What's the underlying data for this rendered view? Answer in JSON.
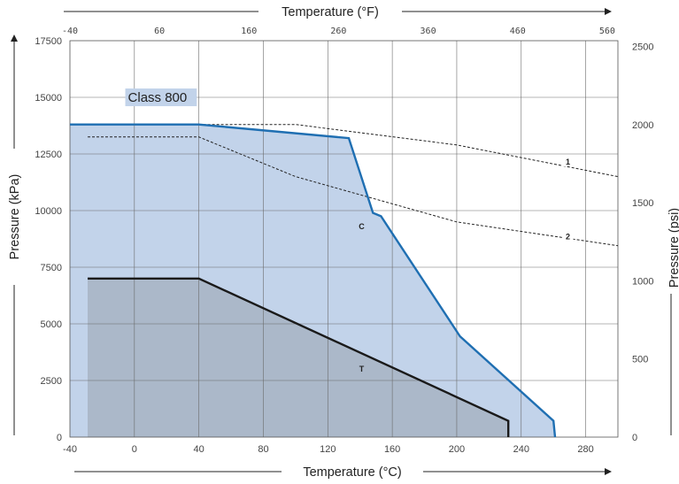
{
  "chart_data": {
    "type": "area",
    "title": "",
    "annotation": "Class 800",
    "x_bottom": {
      "label": "Temperature (°C)",
      "range": [
        -40,
        300
      ],
      "ticks": [
        -40,
        0,
        40,
        80,
        120,
        160,
        200,
        240,
        280
      ]
    },
    "x_top": {
      "label": "Temperature (°F)",
      "range": [
        -40,
        572
      ],
      "ticks": [
        -40,
        60,
        160,
        260,
        360,
        460,
        560
      ]
    },
    "y_left": {
      "label": "Pressure (kPa)",
      "range": [
        0,
        17500
      ],
      "ticks": [
        0,
        2500,
        5000,
        7500,
        10000,
        12500,
        15000,
        17500
      ]
    },
    "y_right": {
      "label": "Pressure (psi)",
      "range": [
        0,
        2538
      ],
      "ticks": [
        0,
        500,
        1000,
        1500,
        2000,
        2500
      ]
    },
    "grid": true,
    "series": [
      {
        "name": "C",
        "style": "filled-solid",
        "color": "#1f6fb2",
        "x": [
          -40,
          40,
          133,
          148,
          153,
          202,
          260,
          261
        ],
        "y": [
          13800,
          13800,
          13200,
          9900,
          9750,
          4450,
          720,
          0
        ]
      },
      {
        "name": "T",
        "style": "filled-solid",
        "color": "#1a1a1a",
        "x": [
          -29,
          40,
          232,
          232
        ],
        "y": [
          7000,
          7000,
          720,
          0
        ]
      },
      {
        "name": "1",
        "style": "dashed",
        "color": "#222222",
        "x": [
          40,
          100,
          200,
          300
        ],
        "y": [
          13800,
          13800,
          12900,
          11500
        ]
      },
      {
        "name": "2",
        "style": "dashed",
        "color": "#222222",
        "x": [
          -29,
          40,
          100,
          200,
          300
        ],
        "y": [
          13250,
          13250,
          11500,
          9500,
          8450
        ]
      }
    ]
  }
}
